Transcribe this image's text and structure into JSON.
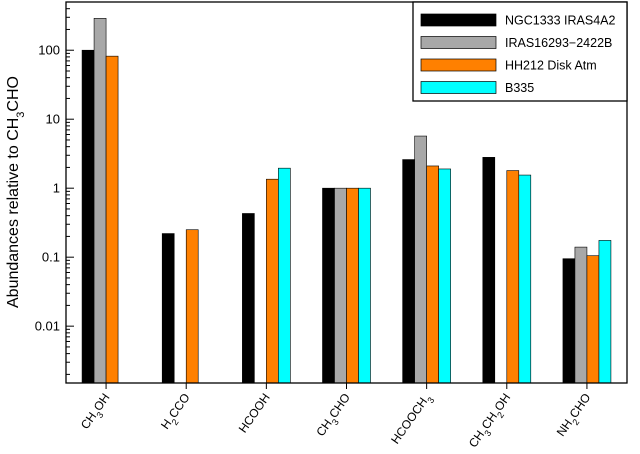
{
  "chart_data": {
    "type": "bar",
    "yscale": "log",
    "ylim": [
      0.0015,
      500
    ],
    "ylabel": "Abundances relative to CH3CHO",
    "ylabel_parts": [
      {
        "t": "Abundances relative to CH"
      },
      {
        "t": "3",
        "sub": true
      },
      {
        "t": "CHO"
      }
    ],
    "yticks": [
      {
        "value": 0.01,
        "label": "0.01"
      },
      {
        "value": 0.1,
        "label": "0.1"
      },
      {
        "value": 1,
        "label": "1"
      },
      {
        "value": 10,
        "label": "10"
      },
      {
        "value": 100,
        "label": "100"
      }
    ],
    "categories": [
      "CH3OH",
      "H2CCO",
      "HCOOH",
      "CH3CHO",
      "HCOOCH3",
      "CH3CH2OH",
      "NH2CHO"
    ],
    "category_labels": [
      [
        {
          "t": "CH"
        },
        {
          "t": "3",
          "sub": true
        },
        {
          "t": "OH"
        }
      ],
      [
        {
          "t": "H"
        },
        {
          "t": "2",
          "sub": true
        },
        {
          "t": "CCO"
        }
      ],
      [
        {
          "t": "HCOOH"
        }
      ],
      [
        {
          "t": "CH"
        },
        {
          "t": "3",
          "sub": true
        },
        {
          "t": "CHO"
        }
      ],
      [
        {
          "t": "HCOOCH"
        },
        {
          "t": "3",
          "sub": true
        }
      ],
      [
        {
          "t": "CH"
        },
        {
          "t": "3",
          "sub": true
        },
        {
          "t": "CH"
        },
        {
          "t": "2",
          "sub": true
        },
        {
          "t": "OH"
        }
      ],
      [
        {
          "t": "NH"
        },
        {
          "t": "2",
          "sub": true
        },
        {
          "t": "CHO"
        }
      ]
    ],
    "series": [
      {
        "name": "NGC1333 IRAS4A2",
        "color": "#000000",
        "values": [
          100,
          0.22,
          0.43,
          1.0,
          2.6,
          2.8,
          0.095
        ]
      },
      {
        "name": "IRAS16293−2422B",
        "color": "#a8a8a8",
        "values": [
          290,
          null,
          null,
          1.0,
          5.7,
          null,
          0.14
        ]
      },
      {
        "name": "HH212 Disk Atm",
        "color": "#ff8000",
        "values": [
          82,
          0.25,
          1.35,
          1.0,
          2.1,
          1.8,
          0.105
        ]
      },
      {
        "name": "B335",
        "color": "#00ffff",
        "values": [
          null,
          null,
          1.95,
          1.0,
          1.9,
          1.55,
          0.175
        ]
      }
    ],
    "legend_position": "top-right",
    "grid": false
  }
}
